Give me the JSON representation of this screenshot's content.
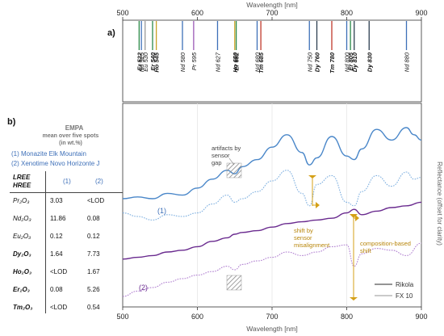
{
  "chart_data": [
    {
      "panel": "a)",
      "type": "line",
      "xlabel": "Wavelength [nm]",
      "xlim": [
        500,
        900
      ],
      "xticks": [
        500,
        600,
        700,
        800,
        900
      ],
      "xtick_labels": [
        "500",
        "600",
        "700",
        "800",
        "900"
      ],
      "absorption_lines": [
        {
          "ree": "Nd",
          "nm": 525,
          "label": "Nd 525",
          "color": "#3d6fb8",
          "bold": false
        },
        {
          "ree": "Er",
          "nm": 522,
          "label": "Er 522",
          "color": "#2b8a4a",
          "bold": true
        },
        {
          "ree": "Eu",
          "nm": 530,
          "label": "Eu 530",
          "color": "#999999",
          "bold": false
        },
        {
          "ree": "Er",
          "nm": 540,
          "label": "Er 540",
          "color": "#2b8a4a",
          "bold": true
        },
        {
          "ree": "Ho",
          "nm": 545,
          "label": "Ho 545",
          "color": "#c9a227",
          "bold": true
        },
        {
          "ree": "Nd",
          "nm": 580,
          "label": "Nd 580",
          "color": "#3d6fb8",
          "bold": false
        },
        {
          "ree": "Pr",
          "nm": 595,
          "label": "Pr 595",
          "color": "#9b59b6",
          "bold": false
        },
        {
          "ree": "Nd",
          "nm": 627,
          "label": "Nd 627",
          "color": "#3d6fb8",
          "bold": false
        },
        {
          "ree": "Ho",
          "nm": 650,
          "label": "Ho 650",
          "color": "#c9a227",
          "bold": true
        },
        {
          "ree": "Er",
          "nm": 652,
          "label": "Er 652",
          "color": "#2b8a4a",
          "bold": true
        },
        {
          "ree": "Nd",
          "nm": 680,
          "label": "Nd 680",
          "color": "#3d6fb8",
          "bold": false
        },
        {
          "ree": "Tm",
          "nm": 685,
          "label": "Tm 685",
          "color": "#c0392b",
          "bold": true
        },
        {
          "ree": "Nd",
          "nm": 750,
          "label": "Nd 750",
          "color": "#3d6fb8",
          "bold": false
        },
        {
          "ree": "Dy",
          "nm": 760,
          "label": "Dy 760",
          "color": "#2c3e50",
          "bold": true
        },
        {
          "ree": "Tm",
          "nm": 780,
          "label": "Tm 780",
          "color": "#c0392b",
          "bold": true
        },
        {
          "ree": "Nd",
          "nm": 800,
          "label": "Nd 800",
          "color": "#3d6fb8",
          "bold": false
        },
        {
          "ree": "Er",
          "nm": 805,
          "label": "Er 805",
          "color": "#2b8a4a",
          "bold": true
        },
        {
          "ree": "Dy",
          "nm": 810,
          "label": "Dy 810",
          "color": "#2c3e50",
          "bold": true
        },
        {
          "ree": "Dy",
          "nm": 830,
          "label": "Dy 830",
          "color": "#2c3e50",
          "bold": true
        },
        {
          "ree": "Nd",
          "nm": 880,
          "label": "Nd 880",
          "color": "#3d6fb8",
          "bold": false
        }
      ]
    },
    {
      "panel": "b)",
      "type": "line",
      "xlabel": "Wavelength [nm]",
      "ylabel": "Reflectance (offset for clarity)",
      "xlim": [
        500,
        900
      ],
      "ylim": [
        0,
        1
      ],
      "xticks": [
        500,
        600,
        700,
        800,
        900
      ],
      "xtick_labels": [
        "500",
        "600",
        "700",
        "800",
        "900"
      ],
      "series": [
        {
          "name": "Rikola",
          "sample": "(1)",
          "color": "#4a87c9",
          "style": "solid",
          "x": [
            500,
            520,
            540,
            560,
            580,
            600,
            620,
            640,
            650,
            660,
            680,
            700,
            720,
            740,
            750,
            760,
            780,
            800,
            810,
            820,
            840,
            860,
            880,
            890,
            900
          ],
          "y": [
            0.6,
            0.61,
            0.6,
            0.63,
            0.62,
            0.66,
            0.71,
            0.76,
            0.74,
            0.78,
            0.82,
            0.89,
            0.96,
            0.86,
            0.79,
            0.83,
            0.95,
            0.84,
            0.82,
            0.88,
            0.99,
            0.93,
            1.0,
            0.96,
            0.93
          ]
        },
        {
          "name": "FX 10",
          "sample": "(1)",
          "color": "#7fb0e0",
          "style": "dotted",
          "x": [
            500,
            520,
            540,
            560,
            580,
            600,
            620,
            640,
            650,
            660,
            680,
            700,
            720,
            740,
            750,
            760,
            780,
            800,
            810,
            820,
            840,
            860,
            880,
            890,
            900
          ],
          "y": [
            0.52,
            0.5,
            0.48,
            0.51,
            0.5,
            0.52,
            0.57,
            0.62,
            0.58,
            0.6,
            0.64,
            0.7,
            0.76,
            0.63,
            0.56,
            0.68,
            0.73,
            0.58,
            0.56,
            0.64,
            0.73,
            0.67,
            0.75,
            0.71,
            0.72
          ]
        },
        {
          "name": "Rikola",
          "sample": "(2)",
          "color": "#6a2b8f",
          "style": "solid",
          "x": [
            500,
            520,
            540,
            560,
            580,
            600,
            620,
            640,
            650,
            660,
            680,
            700,
            720,
            740,
            760,
            780,
            800,
            810,
            820,
            840,
            860,
            880,
            900
          ],
          "y": [
            0.26,
            0.27,
            0.28,
            0.3,
            0.31,
            0.33,
            0.36,
            0.38,
            0.4,
            0.41,
            0.42,
            0.44,
            0.46,
            0.47,
            0.48,
            0.49,
            0.52,
            0.54,
            0.51,
            0.53,
            0.55,
            0.56,
            0.58
          ]
        },
        {
          "name": "FX 10",
          "sample": "(2)",
          "color": "#b07fd0",
          "style": "dotted",
          "x": [
            500,
            520,
            540,
            560,
            580,
            600,
            620,
            640,
            650,
            660,
            680,
            700,
            720,
            740,
            760,
            780,
            800,
            810,
            820,
            840,
            860,
            880,
            900
          ],
          "y": [
            0.05,
            0.08,
            0.1,
            0.13,
            0.15,
            0.17,
            0.19,
            0.22,
            0.2,
            0.23,
            0.25,
            0.27,
            0.3,
            0.28,
            0.3,
            0.33,
            0.34,
            0.22,
            0.29,
            0.32,
            0.31,
            0.28,
            0.35
          ]
        }
      ],
      "annotations": [
        {
          "text": "artifacts by sensor gap",
          "color": "gray"
        },
        {
          "text": "shift by sensor misalignment",
          "color": "orange"
        },
        {
          "text": "composition-based shift",
          "color": "orange"
        }
      ],
      "series_labels": [
        "(1)",
        "(2)"
      ],
      "legend": {
        "placement": "bottom-right",
        "entries": [
          "Rikola",
          "FX 10"
        ]
      }
    }
  ],
  "table": {
    "title": "EMPA",
    "subtitle_line1": "mean over five spots",
    "subtitle_line2": "(in wt.%)",
    "sample1": "(1) Monazite Elk Mountain",
    "sample2": "(2) Xenotime Novo Horizonte J",
    "header_lree": "LREE",
    "header_hree": "HREE",
    "header_col1": "(1)",
    "header_col2": "(2)",
    "rows": [
      {
        "oxide": "Pr₂O₃",
        "v1": "3.03",
        "v2": "<LOD",
        "bold": false
      },
      {
        "oxide": "Nd₂O₃",
        "v1": "11.86",
        "v2": "0.08",
        "bold": false
      },
      {
        "oxide": "Eu₂O₃",
        "v1": "0.12",
        "v2": "0.12",
        "bold": false
      },
      {
        "oxide": "Dy₂O₃",
        "v1": "1.64",
        "v2": "7.73",
        "bold": true
      },
      {
        "oxide": "Ho₂O₃",
        "v1": "<LOD",
        "v2": "1.67",
        "bold": true
      },
      {
        "oxide": "Er₂O₃",
        "v1": "0.08",
        "v2": "5.26",
        "bold": true
      },
      {
        "oxide": "Tm₂O₃",
        "v1": "<LOD",
        "v2": "0.54",
        "bold": true
      }
    ]
  }
}
